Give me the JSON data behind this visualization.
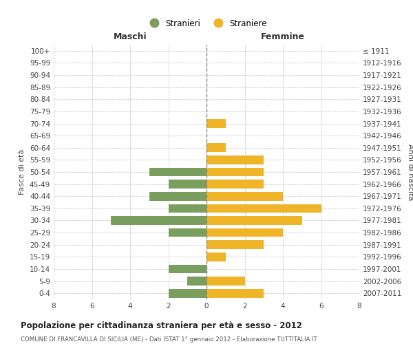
{
  "age_groups": [
    "0-4",
    "5-9",
    "10-14",
    "15-19",
    "20-24",
    "25-29",
    "30-34",
    "35-39",
    "40-44",
    "45-49",
    "50-54",
    "55-59",
    "60-64",
    "65-69",
    "70-74",
    "75-79",
    "80-84",
    "85-89",
    "90-94",
    "95-99",
    "100+"
  ],
  "birth_years": [
    "2007-2011",
    "2002-2006",
    "1997-2001",
    "1992-1996",
    "1987-1991",
    "1982-1986",
    "1977-1981",
    "1972-1976",
    "1967-1971",
    "1962-1966",
    "1957-1961",
    "1952-1956",
    "1947-1951",
    "1942-1946",
    "1937-1941",
    "1932-1936",
    "1927-1931",
    "1922-1926",
    "1917-1921",
    "1912-1916",
    "≤ 1911"
  ],
  "males": [
    2,
    1,
    2,
    0,
    0,
    2,
    5,
    2,
    3,
    2,
    3,
    0,
    0,
    0,
    0,
    0,
    0,
    0,
    0,
    0,
    0
  ],
  "females": [
    3,
    2,
    0,
    1,
    3,
    4,
    5,
    6,
    4,
    3,
    3,
    3,
    1,
    0,
    1,
    0,
    0,
    0,
    0,
    0,
    0
  ],
  "male_color": "#7a9e5e",
  "female_color": "#f0b429",
  "title": "Popolazione per cittadinanza straniera per età e sesso - 2012",
  "subtitle": "COMUNE DI FRANCAVILLA DI SICILIA (ME) - Dati ISTAT 1° gennaio 2012 - Elaborazione TUTTITALIA.IT",
  "ylabel_left": "Fasce di età",
  "ylabel_right": "Anni di nascita",
  "header_left": "Maschi",
  "header_right": "Femmine",
  "legend_male": "Stranieri",
  "legend_female": "Straniere",
  "xlim": 8,
  "background_color": "#ffffff",
  "grid_color": "#cccccc"
}
